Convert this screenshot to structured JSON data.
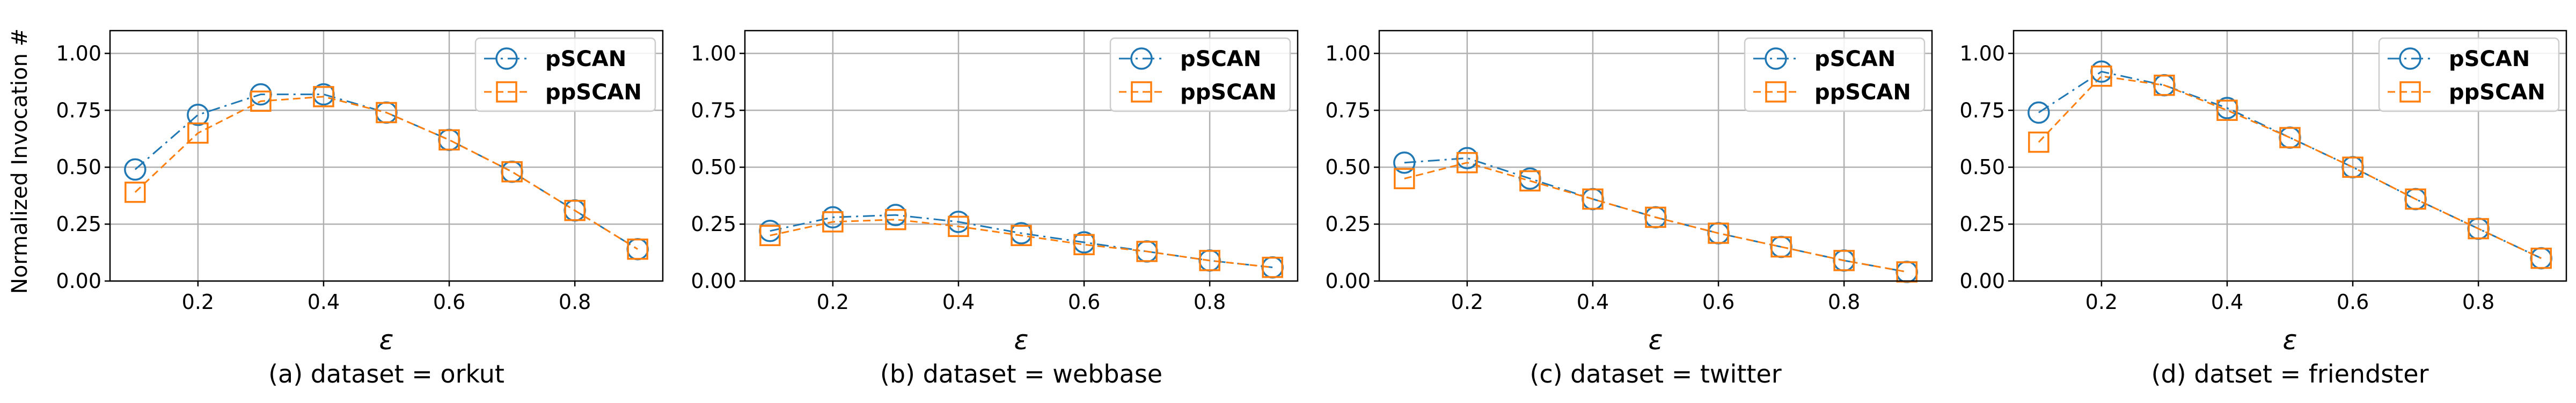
{
  "figure": {
    "ylabel": "Normalized Invocation #"
  },
  "chart_data": [
    {
      "type": "line",
      "caption": "(a) dataset = orkut",
      "xlabel": "ε",
      "x": [
        0.1,
        0.2,
        0.3,
        0.4,
        0.5,
        0.6,
        0.7,
        0.8,
        0.9
      ],
      "xticks": [
        0.2,
        0.4,
        0.6,
        0.8
      ],
      "xlim": [
        0.06,
        0.94
      ],
      "ylim": [
        0.0,
        1.1
      ],
      "yticks": [
        0.0,
        0.25,
        0.5,
        0.75,
        1.0
      ],
      "grid": true,
      "legend_position": "top-right",
      "series": [
        {
          "name": "pSCAN",
          "color": "#1f77b4",
          "marker": "circle",
          "linestyle": "dash-dot",
          "values": [
            0.49,
            0.73,
            0.82,
            0.82,
            0.74,
            0.62,
            0.48,
            0.31,
            0.14
          ]
        },
        {
          "name": "ppSCAN",
          "color": "#ff7f0e",
          "marker": "square",
          "linestyle": "dashed",
          "values": [
            0.39,
            0.65,
            0.79,
            0.81,
            0.74,
            0.62,
            0.48,
            0.31,
            0.14
          ]
        }
      ]
    },
    {
      "type": "line",
      "caption": "(b) dataset = webbase",
      "xlabel": "ε",
      "x": [
        0.1,
        0.2,
        0.3,
        0.4,
        0.5,
        0.6,
        0.7,
        0.8,
        0.9
      ],
      "xticks": [
        0.2,
        0.4,
        0.6,
        0.8
      ],
      "xlim": [
        0.06,
        0.94
      ],
      "ylim": [
        0.0,
        1.1
      ],
      "yticks": [
        0.0,
        0.25,
        0.5,
        0.75,
        1.0
      ],
      "grid": true,
      "legend_position": "top-right",
      "series": [
        {
          "name": "pSCAN",
          "color": "#1f77b4",
          "marker": "circle",
          "linestyle": "dash-dot",
          "values": [
            0.22,
            0.28,
            0.29,
            0.26,
            0.21,
            0.17,
            0.13,
            0.09,
            0.06
          ]
        },
        {
          "name": "ppSCAN",
          "color": "#ff7f0e",
          "marker": "square",
          "linestyle": "dashed",
          "values": [
            0.2,
            0.26,
            0.27,
            0.24,
            0.2,
            0.16,
            0.13,
            0.09,
            0.06
          ]
        }
      ]
    },
    {
      "type": "line",
      "caption": "(c) dataset = twitter",
      "xlabel": "ε",
      "x": [
        0.1,
        0.2,
        0.3,
        0.4,
        0.5,
        0.6,
        0.7,
        0.8,
        0.9
      ],
      "xticks": [
        0.2,
        0.4,
        0.6,
        0.8
      ],
      "xlim": [
        0.06,
        0.94
      ],
      "ylim": [
        0.0,
        1.1
      ],
      "yticks": [
        0.0,
        0.25,
        0.5,
        0.75,
        1.0
      ],
      "grid": true,
      "legend_position": "top-right",
      "series": [
        {
          "name": "pSCAN",
          "color": "#1f77b4",
          "marker": "circle",
          "linestyle": "dash-dot",
          "values": [
            0.52,
            0.54,
            0.45,
            0.36,
            0.28,
            0.21,
            0.15,
            0.09,
            0.04
          ]
        },
        {
          "name": "ppSCAN",
          "color": "#ff7f0e",
          "marker": "square",
          "linestyle": "dashed",
          "values": [
            0.45,
            0.52,
            0.44,
            0.36,
            0.28,
            0.21,
            0.15,
            0.09,
            0.04
          ]
        }
      ]
    },
    {
      "type": "line",
      "caption": "(d) datset = friendster",
      "xlabel": "ε",
      "x": [
        0.1,
        0.2,
        0.3,
        0.4,
        0.5,
        0.6,
        0.7,
        0.8,
        0.9
      ],
      "xticks": [
        0.2,
        0.4,
        0.6,
        0.8
      ],
      "xlim": [
        0.06,
        0.94
      ],
      "ylim": [
        0.0,
        1.1
      ],
      "yticks": [
        0.0,
        0.25,
        0.5,
        0.75,
        1.0
      ],
      "grid": true,
      "legend_position": "top-right",
      "series": [
        {
          "name": "pSCAN",
          "color": "#1f77b4",
          "marker": "circle",
          "linestyle": "dash-dot",
          "values": [
            0.74,
            0.92,
            0.86,
            0.76,
            0.63,
            0.5,
            0.36,
            0.23,
            0.1
          ]
        },
        {
          "name": "ppSCAN",
          "color": "#ff7f0e",
          "marker": "square",
          "linestyle": "dashed",
          "values": [
            0.61,
            0.9,
            0.86,
            0.75,
            0.63,
            0.5,
            0.36,
            0.23,
            0.1
          ]
        }
      ]
    }
  ]
}
